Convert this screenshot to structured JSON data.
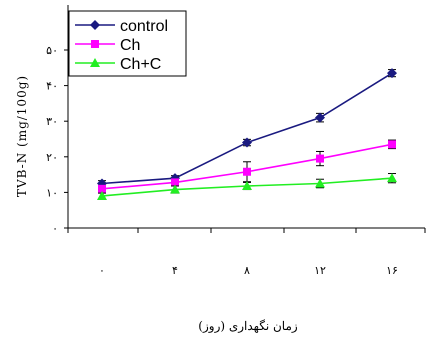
{
  "chart_data": {
    "type": "line",
    "title": "",
    "xlabel": "زمان نگهداری (روز)",
    "ylabel": "TVB-N (mg/100g)",
    "x": [
      0,
      4,
      8,
      12,
      16
    ],
    "x_tick_labels": [
      "۰",
      "۴",
      "۸",
      "۱۲",
      "۱۶"
    ],
    "ylim": [
      0,
      50
    ],
    "y_ticks": [
      0,
      10,
      20,
      30,
      40,
      50
    ],
    "y_tick_labels": [
      "۰",
      "۱۰",
      "۲۰",
      "۳۰",
      "۴۰",
      "۵۰"
    ],
    "grid": false,
    "legend_placement": "top-left",
    "series": [
      {
        "name": "control",
        "values": [
          12.5,
          14,
          24,
          31,
          43.5
        ],
        "errors": [
          0.8,
          0.7,
          0.9,
          1.2,
          1.0
        ],
        "color": "#1a1a80",
        "marker": "diamond"
      },
      {
        "name": "Ch",
        "values": [
          11,
          12.8,
          15.8,
          19.5,
          23.5
        ],
        "errors": [
          0.9,
          0.8,
          2.8,
          2.0,
          1.2
        ],
        "color": "#ff00ff",
        "marker": "square"
      },
      {
        "name": "Ch+C",
        "values": [
          9,
          10.8,
          11.8,
          12.5,
          14
        ],
        "errors": [
          0.8,
          1.0,
          1.0,
          1.2,
          1.3
        ],
        "color": "#22ee22",
        "marker": "triangle"
      }
    ]
  }
}
